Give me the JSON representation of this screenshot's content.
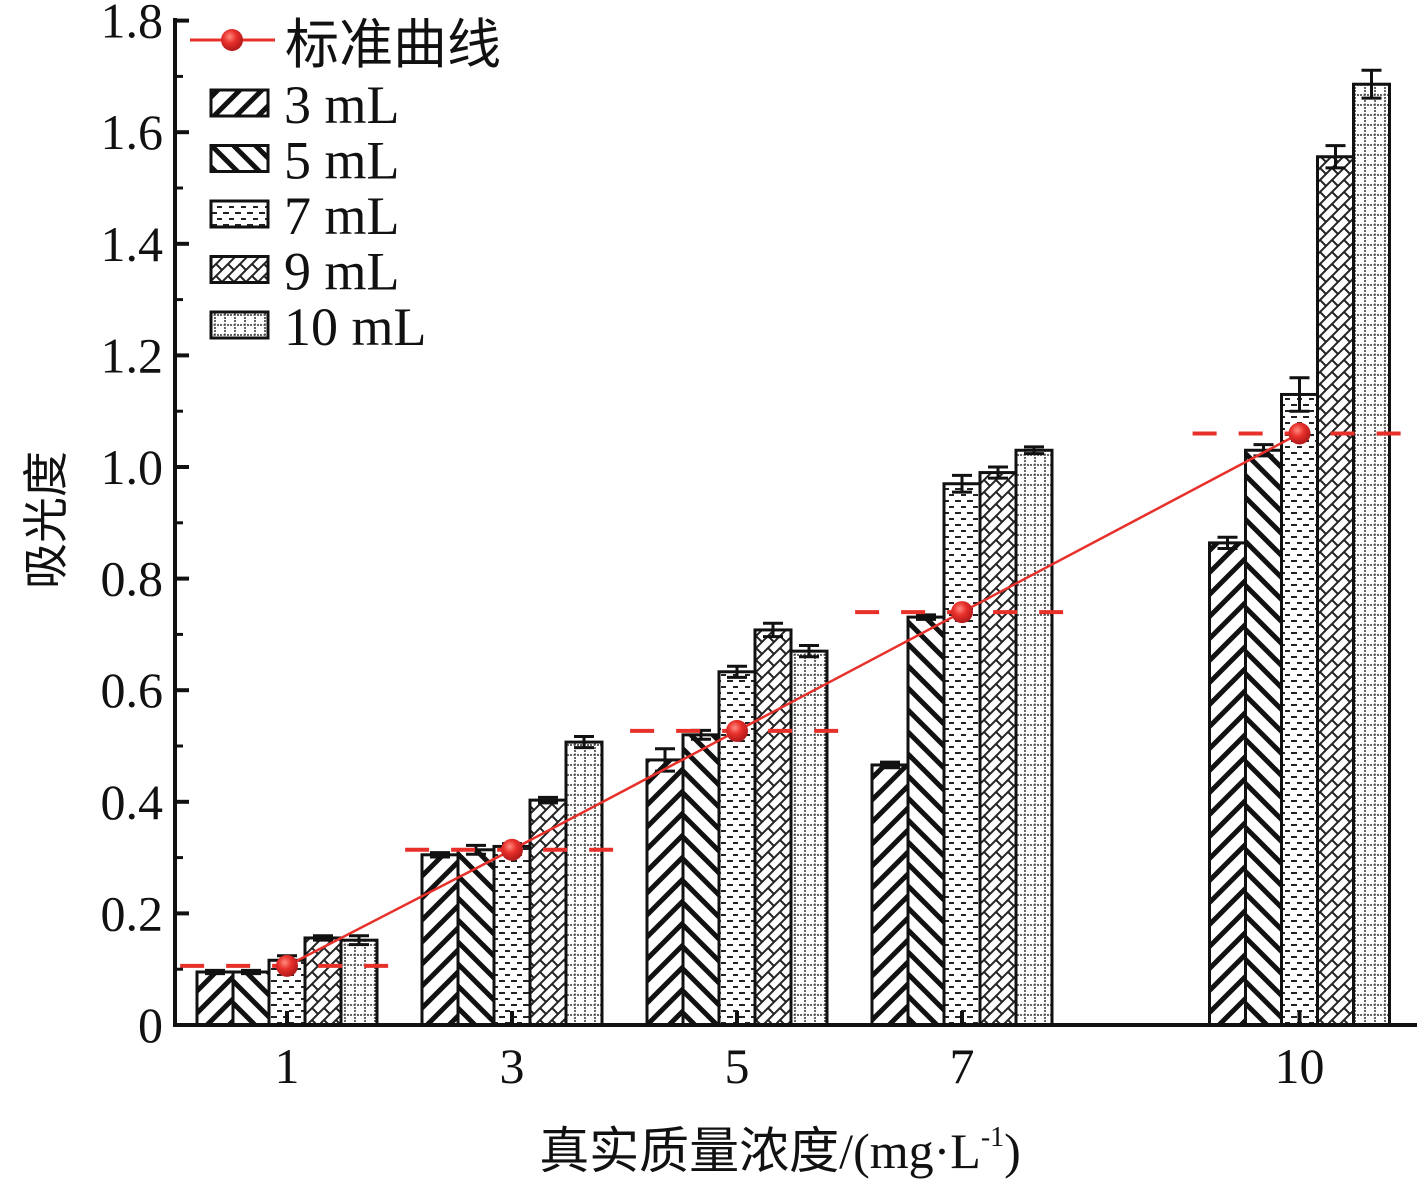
{
  "chart_data": {
    "type": "bar",
    "title": "",
    "xlabel": "真实质量浓度/(mg·L",
    "xlabel_sup": "-1",
    "xlabel_end": ")",
    "ylabel": "吸光度",
    "ylim": [
      0,
      1.8
    ],
    "yticks": [
      0,
      0.2,
      0.4,
      0.6,
      0.8,
      1.0,
      1.2,
      1.4,
      1.6,
      1.8
    ],
    "ytick_labels": [
      "0",
      "0.2",
      "0.4",
      "0.6",
      "0.8",
      "1.0",
      "1.2",
      "1.4",
      "1.6",
      "1.8"
    ],
    "categories": [
      1,
      3,
      5,
      7,
      10
    ],
    "category_labels": [
      "1",
      "3",
      "5",
      "7",
      "10"
    ],
    "series": [
      {
        "name": "3 mL",
        "pattern": "hatch-up",
        "values": [
          0.095,
          0.305,
          0.475,
          0.466,
          0.864
        ],
        "errors": [
          0.003,
          0.004,
          0.02,
          0.005,
          0.01
        ]
      },
      {
        "name": "5 mL",
        "pattern": "hatch-down",
        "values": [
          0.095,
          0.314,
          0.52,
          0.731,
          1.03
        ],
        "errors": [
          0.003,
          0.008,
          0.008,
          0.004,
          0.01
        ]
      },
      {
        "name": "7 mL",
        "pattern": "dashes",
        "values": [
          0.116,
          0.32,
          0.633,
          0.97,
          1.13
        ],
        "errors": [
          0.008,
          0.005,
          0.01,
          0.015,
          0.03
        ]
      },
      {
        "name": "9 mL",
        "pattern": "crosshatch",
        "values": [
          0.156,
          0.403,
          0.708,
          0.99,
          1.556
        ],
        "errors": [
          0.004,
          0.005,
          0.012,
          0.01,
          0.02
        ]
      },
      {
        "name": "10 mL",
        "pattern": "grid",
        "values": [
          0.152,
          0.507,
          0.67,
          1.03,
          1.686
        ],
        "errors": [
          0.008,
          0.01,
          0.01,
          0.006,
          0.025
        ]
      }
    ],
    "standard_curve": {
      "name": "标准曲线",
      "x": [
        1,
        3,
        5,
        7,
        10
      ],
      "y": [
        0.106,
        0.314,
        0.527,
        0.74,
        1.06
      ],
      "color": "#e8302a"
    },
    "legend": "top-left",
    "grid": false
  }
}
